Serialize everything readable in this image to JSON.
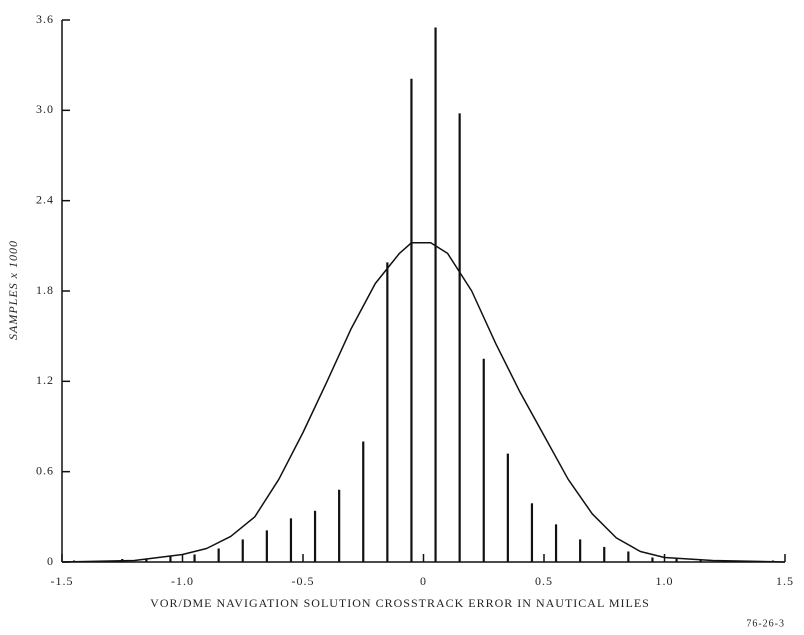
{
  "chart_data": {
    "type": "stem",
    "x_label": "VOR/DME NAVIGATION SOLUTION CROSSTRACK ERROR IN NAUTICAL MILES",
    "y_label": "SAMPLES x 1000",
    "note": "76-26-3",
    "color": "#111111",
    "xlim": [
      -1.5,
      1.5
    ],
    "ylim": [
      0,
      3.6
    ],
    "xticks": [
      -1.5,
      {
        "value": -1,
        "label": "-1.0"
      },
      -0.5,
      0,
      0.5,
      {
        "value": 1,
        "label": "1.0"
      },
      1.5
    ],
    "yticks": [
      0,
      0.6,
      1.2,
      1.8,
      2.4,
      {
        "value": 3,
        "label": "3.0"
      },
      3.6
    ],
    "stems": {
      "x": [
        -1.45,
        -1.35,
        -1.25,
        -1.15,
        -1.05,
        -0.95,
        -0.85,
        -0.75,
        -0.65,
        -0.55,
        -0.45,
        -0.35,
        -0.25,
        -0.15,
        -0.05,
        0.05,
        0.15,
        0.25,
        0.35,
        0.45,
        0.55,
        0.65,
        0.75,
        0.85,
        0.95,
        1.05,
        1.15,
        1.25,
        1.35,
        1.45
      ],
      "values": [
        0.01,
        0.01,
        0.02,
        0.02,
        0.04,
        0.05,
        0.09,
        0.15,
        0.21,
        0.29,
        0.34,
        0.48,
        0.8,
        1.99,
        3.21,
        3.55,
        2.98,
        1.35,
        0.72,
        0.39,
        0.25,
        0.15,
        0.1,
        0.07,
        0.03,
        0.02,
        0.01,
        0.01,
        0.01,
        0.01
      ]
    },
    "curve": {
      "x": [
        -1.5,
        -1.2,
        -1.0,
        -0.9,
        -0.8,
        -0.7,
        -0.6,
        -0.5,
        -0.4,
        -0.3,
        -0.2,
        -0.1,
        -0.05,
        0.03,
        0.1,
        0.2,
        0.3,
        0.4,
        0.5,
        0.6,
        0.7,
        0.8,
        0.9,
        1.0,
        1.2,
        1.5
      ],
      "values": [
        0,
        0.01,
        0.05,
        0.09,
        0.17,
        0.3,
        0.55,
        0.86,
        1.2,
        1.55,
        1.85,
        2.05,
        2.12,
        2.12,
        2.05,
        1.8,
        1.45,
        1.13,
        0.84,
        0.55,
        0.32,
        0.16,
        0.07,
        0.03,
        0.01,
        0
      ]
    }
  }
}
